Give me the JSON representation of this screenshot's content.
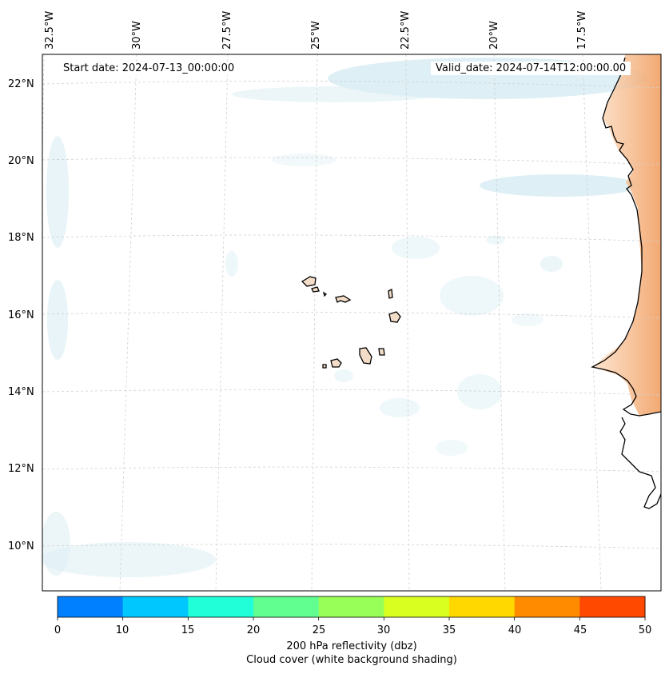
{
  "map": {
    "start_date": "Start date: 2024-07-13_00:00:00",
    "valid_date": "Valid_date: 2024-07-14T12:00:00.00",
    "lon_labels": [
      "32.5°W",
      "30°W",
      "27.5°W",
      "25°W",
      "22.5°W",
      "20°W",
      "17.5°W"
    ],
    "lat_labels": [
      "22°N",
      "20°N",
      "18°N",
      "16°N",
      "14°N",
      "12°N",
      "10°N"
    ],
    "colors": {
      "land_shading": "#f4a36a",
      "cloud_shading": "#cde8f0",
      "coastline": "#000000",
      "gridline": "#c8c8c8"
    }
  },
  "colorbar": {
    "ticks": [
      "0",
      "10",
      "15",
      "20",
      "25",
      "30",
      "35",
      "40",
      "45",
      "50"
    ],
    "colors": [
      "#0080ff",
      "#00c8ff",
      "#20ffd8",
      "#60ff90",
      "#98ff58",
      "#d8ff20",
      "#ffd800",
      "#ff8c00",
      "#ff4800"
    ],
    "label_line1": "200 hPa reflectivity (dbz)",
    "label_line2": "Cloud cover (white background shading)"
  }
}
